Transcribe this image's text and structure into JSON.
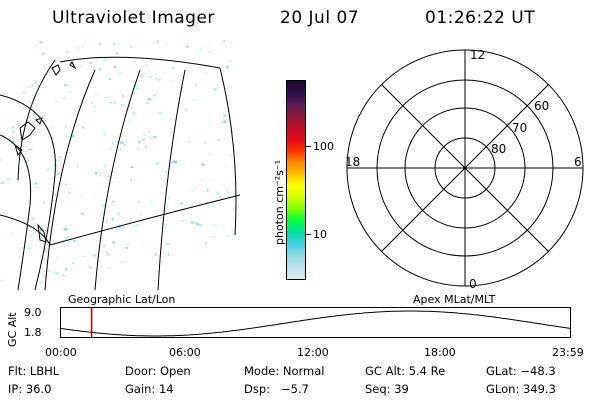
{
  "header": {
    "title": "Ultraviolet Imager",
    "date": "20 Jul 07",
    "time": "01:26:22 UT"
  },
  "map": {
    "label": "Geographic Lat/Lon"
  },
  "colorbar": {
    "unit_label": "photon cm⁻²s⁻¹",
    "ticks": [
      "100",
      "10"
    ],
    "colors": [
      "#1a0a2a",
      "#2a0f4a",
      "#5a1a5a",
      "#8a1a3a",
      "#c0102a",
      "#e00a1a",
      "#ff3000",
      "#ff8800",
      "#ffc000",
      "#ffff00",
      "#d0ff00",
      "#80ff00",
      "#00ff40",
      "#00e0a0",
      "#40d0e0",
      "#90d8e8",
      "#c0e0e8",
      "#e0eef2"
    ]
  },
  "polar": {
    "label": "Apex MLat/MLT",
    "hours": {
      "top": "12",
      "left": "18",
      "right": "6",
      "bottom": "0"
    },
    "rings": [
      "60",
      "70",
      "80"
    ]
  },
  "altitude_plot": {
    "ylabel": "GC Alt",
    "ymax": "9.0",
    "ymin": "1.8",
    "xticks": [
      "00:00",
      "06:00",
      "12:00",
      "18:00",
      "23:59"
    ],
    "current_time_hours": 1.44,
    "marker_color": "#cc0000"
  },
  "status": {
    "flt": "Flt: LBHL",
    "door": "Door: Open",
    "mode": "Mode: Normal",
    "gc_alt": "GC Alt: 5.4 Re",
    "glat": "GLat: −48.3",
    "ip": "IP: 36.0",
    "gain": "Gain: 14",
    "dsp": "Dsp:   −5.7",
    "seq": "Seq: 39",
    "glon": "GLon: 349.3"
  }
}
